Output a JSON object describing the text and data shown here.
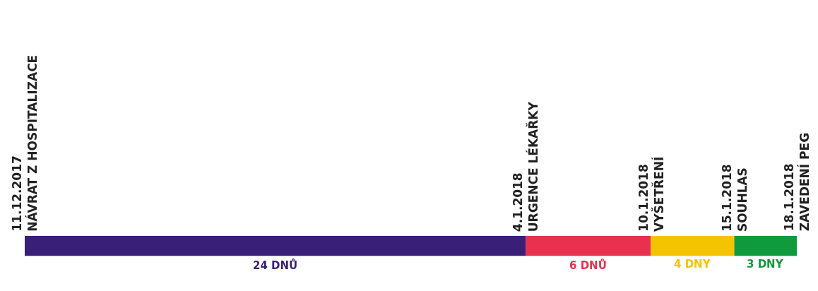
{
  "chart_data": {
    "type": "bar",
    "orientation": "horizontal",
    "stacked": true,
    "categories": [
      null
    ],
    "series": [
      {
        "color": "#3a1f78",
        "values": [
          24
        ],
        "value_labels": [
          "24 DNŮ"
        ]
      },
      {
        "color": "#e8314f",
        "values": [
          6
        ],
        "value_labels": [
          "6 DNŮ"
        ]
      },
      {
        "color": "#f5c400",
        "values": [
          4
        ],
        "value_labels": [
          "4 DNY"
        ]
      },
      {
        "color": "#0f9a3e",
        "values": [
          3
        ],
        "value_labels": [
          "3 DNY"
        ]
      }
    ],
    "tick_labels": false,
    "annotations": [
      "11.12.2017\nNÁVRAT Z HOSPITALIZACE",
      "4.1.2018\nURGENCE LÉKAŘKY",
      "10.1.2018\nVYŠETŘENÍ",
      "15.1.2018\nSOUHLAS",
      "18.1.2018\nZAVEDENÍ PEG"
    ]
  }
}
